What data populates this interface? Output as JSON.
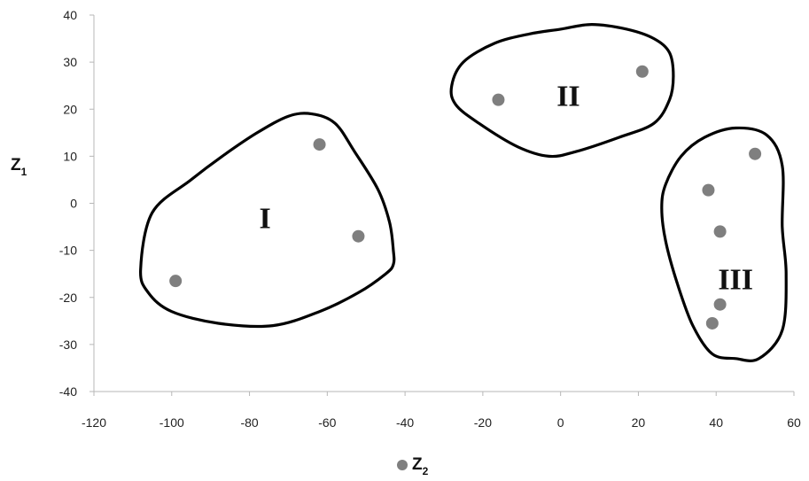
{
  "chart_data": {
    "type": "scatter",
    "title": "",
    "xlabel": {
      "main": "Z",
      "sub": "2"
    },
    "ylabel": {
      "main": "Z",
      "sub": "1"
    },
    "xlim": [
      -120,
      60
    ],
    "ylim": [
      -40,
      40
    ],
    "x_ticks": [
      -120,
      -100,
      -80,
      -60,
      -40,
      -20,
      0,
      20,
      40,
      60
    ],
    "y_ticks": [
      -40,
      -30,
      -20,
      -10,
      0,
      10,
      20,
      30,
      40
    ],
    "grid": false,
    "legend": "bottom",
    "marker_color": "#7f7f7f",
    "points": [
      {
        "x": -62,
        "y": 12.5
      },
      {
        "x": -52,
        "y": -7
      },
      {
        "x": -99,
        "y": -16.5
      },
      {
        "x": -16,
        "y": 22
      },
      {
        "x": 21,
        "y": 28
      },
      {
        "x": 50,
        "y": 10.5
      },
      {
        "x": 38,
        "y": 2.8
      },
      {
        "x": 41,
        "y": -6
      },
      {
        "x": 41,
        "y": -21.5
      },
      {
        "x": 39,
        "y": -25.5
      }
    ],
    "clusters": [
      {
        "label": "I",
        "label_pos": [
          -76,
          -3
        ],
        "outline": [
          [
            -64,
            19
          ],
          [
            -58,
            17
          ],
          [
            -53,
            11
          ],
          [
            -47,
            3
          ],
          [
            -44,
            -4
          ],
          [
            -43,
            -10
          ],
          [
            -43,
            -13
          ],
          [
            -45,
            -15
          ],
          [
            -52,
            -19
          ],
          [
            -62,
            -23
          ],
          [
            -74,
            -26
          ],
          [
            -88,
            -25.5
          ],
          [
            -100,
            -23
          ],
          [
            -106,
            -19
          ],
          [
            -108,
            -14
          ],
          [
            -105,
            -2
          ],
          [
            -95,
            5
          ],
          [
            -87,
            10
          ],
          [
            -78,
            15
          ],
          [
            -70,
            18.5
          ]
        ]
      },
      {
        "label": "II",
        "label_pos": [
          2,
          23
        ],
        "outline": [
          [
            0,
            37
          ],
          [
            8,
            38
          ],
          [
            17,
            37
          ],
          [
            24,
            35
          ],
          [
            28,
            32
          ],
          [
            29,
            27
          ],
          [
            28,
            22
          ],
          [
            24,
            17
          ],
          [
            15,
            14
          ],
          [
            4,
            11
          ],
          [
            -3,
            10
          ],
          [
            -11,
            12
          ],
          [
            -21,
            17
          ],
          [
            -27,
            21
          ],
          [
            -28,
            25
          ],
          [
            -25,
            30
          ],
          [
            -17,
            34
          ],
          [
            -8,
            36
          ]
        ]
      },
      {
        "label": "III",
        "label_pos": [
          45,
          -16
        ],
        "outline": [
          [
            45,
            16
          ],
          [
            53,
            14.5
          ],
          [
            57,
            8
          ],
          [
            57,
            -5
          ],
          [
            58,
            -15
          ],
          [
            57,
            -27
          ],
          [
            51,
            -33
          ],
          [
            45,
            -33
          ],
          [
            39,
            -32
          ],
          [
            34,
            -26
          ],
          [
            30,
            -17
          ],
          [
            27,
            -8
          ],
          [
            26,
            -1
          ],
          [
            27,
            4
          ],
          [
            31,
            10
          ],
          [
            37,
            14
          ]
        ]
      }
    ]
  }
}
